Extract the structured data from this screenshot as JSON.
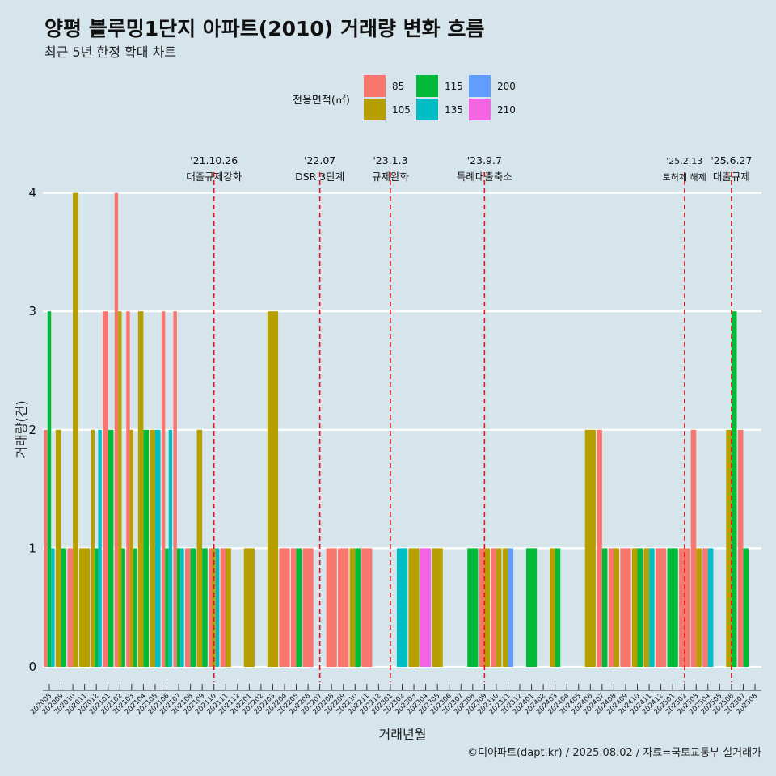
{
  "chart_data": {
    "type": "bar",
    "title": "양평 블루밍1단지 아파트(2010) 거래량 변화 흐름",
    "subtitle": "최근 5년 한정 확대 차트",
    "xlabel": "거래년월",
    "ylabel": "거래량(건)",
    "ylim": [
      0,
      4
    ],
    "yticks": [
      0,
      1,
      2,
      3,
      4
    ],
    "grid": true,
    "legend": {
      "title": "전용면적(㎡)",
      "placement": "top",
      "entries": [
        {
          "name": "85",
          "color": "#f8766d"
        },
        {
          "name": "105",
          "color": "#b79f00"
        },
        {
          "name": "115",
          "color": "#00ba38"
        },
        {
          "name": "135",
          "color": "#00bfc4"
        },
        {
          "name": "200",
          "color": "#619cff"
        },
        {
          "name": "210",
          "color": "#f564e3"
        }
      ]
    },
    "categories": [
      "202008",
      "202009",
      "202010",
      "202011",
      "202012",
      "202101",
      "202102",
      "202103",
      "202104",
      "202105",
      "202106",
      "202107",
      "202108",
      "202109",
      "202110",
      "202111",
      "202112",
      "202201",
      "202202",
      "202203",
      "202204",
      "202205",
      "202206",
      "202207",
      "202208",
      "202209",
      "202210",
      "202211",
      "202212",
      "202301",
      "202302",
      "202303",
      "202304",
      "202305",
      "202306",
      "202307",
      "202308",
      "202309",
      "202310",
      "202311",
      "202312",
      "202401",
      "202402",
      "202403",
      "202404",
      "202405",
      "202406",
      "202407",
      "202408",
      "202409",
      "202410",
      "202411",
      "202412",
      "202501",
      "202502",
      "202503",
      "202504",
      "202505",
      "202506",
      "202507",
      "202508"
    ],
    "bars": [
      {
        "month": "202008",
        "groups": [
          {
            "area": "85",
            "count": 2
          },
          {
            "area": "115",
            "count": 3
          },
          {
            "area": "135",
            "count": 1
          }
        ]
      },
      {
        "month": "202009",
        "groups": [
          {
            "area": "105",
            "count": 2
          },
          {
            "area": "115",
            "count": 1
          }
        ]
      },
      {
        "month": "202010",
        "groups": [
          {
            "area": "85",
            "count": 1
          },
          {
            "area": "105",
            "count": 4
          }
        ]
      },
      {
        "month": "202011",
        "groups": [
          {
            "area": "105",
            "count": 1
          }
        ]
      },
      {
        "month": "202012",
        "groups": [
          {
            "area": "105",
            "count": 2
          },
          {
            "area": "115",
            "count": 1
          },
          {
            "area": "135",
            "count": 2
          }
        ]
      },
      {
        "month": "202101",
        "groups": [
          {
            "area": "85",
            "count": 3
          },
          {
            "area": "115",
            "count": 2
          }
        ]
      },
      {
        "month": "202102",
        "groups": [
          {
            "area": "85",
            "count": 4
          },
          {
            "area": "105",
            "count": 3
          },
          {
            "area": "115",
            "count": 1
          }
        ]
      },
      {
        "month": "202103",
        "groups": [
          {
            "area": "85",
            "count": 3
          },
          {
            "area": "105",
            "count": 2
          },
          {
            "area": "115",
            "count": 1
          }
        ]
      },
      {
        "month": "202104",
        "groups": [
          {
            "area": "105",
            "count": 3
          },
          {
            "area": "115",
            "count": 2
          }
        ]
      },
      {
        "month": "202105",
        "groups": [
          {
            "area": "105",
            "count": 2
          },
          {
            "area": "135",
            "count": 2
          }
        ]
      },
      {
        "month": "202106",
        "groups": [
          {
            "area": "85",
            "count": 3
          },
          {
            "area": "115",
            "count": 1
          },
          {
            "area": "135",
            "count": 2
          }
        ]
      },
      {
        "month": "202107",
        "groups": [
          {
            "area": "85",
            "count": 3
          },
          {
            "area": "115",
            "count": 1
          },
          {
            "area": "135",
            "count": 1
          }
        ]
      },
      {
        "month": "202108",
        "groups": [
          {
            "area": "85",
            "count": 1
          },
          {
            "area": "115",
            "count": 1
          }
        ]
      },
      {
        "month": "202109",
        "groups": [
          {
            "area": "105",
            "count": 2
          },
          {
            "area": "115",
            "count": 1
          }
        ]
      },
      {
        "month": "202110",
        "groups": [
          {
            "area": "85",
            "count": 1
          },
          {
            "area": "105",
            "count": 1
          },
          {
            "area": "135",
            "count": 1
          }
        ]
      },
      {
        "month": "202111",
        "groups": [
          {
            "area": "85",
            "count": 1
          },
          {
            "area": "105",
            "count": 1
          }
        ]
      },
      {
        "month": "202112",
        "groups": []
      },
      {
        "month": "202201",
        "groups": [
          {
            "area": "105",
            "count": 1
          }
        ]
      },
      {
        "month": "202202",
        "groups": []
      },
      {
        "month": "202203",
        "groups": [
          {
            "area": "105",
            "count": 3
          }
        ]
      },
      {
        "month": "202204",
        "groups": [
          {
            "area": "85",
            "count": 1
          }
        ]
      },
      {
        "month": "202205",
        "groups": [
          {
            "area": "85",
            "count": 1
          },
          {
            "area": "115",
            "count": 1
          }
        ]
      },
      {
        "month": "202206",
        "groups": [
          {
            "area": "85",
            "count": 1
          }
        ]
      },
      {
        "month": "202207",
        "groups": []
      },
      {
        "month": "202208",
        "groups": [
          {
            "area": "85",
            "count": 1
          }
        ]
      },
      {
        "month": "202209",
        "groups": [
          {
            "area": "85",
            "count": 1
          }
        ]
      },
      {
        "month": "202210",
        "groups": [
          {
            "area": "105",
            "count": 1
          },
          {
            "area": "115",
            "count": 1
          }
        ]
      },
      {
        "month": "202211",
        "groups": [
          {
            "area": "85",
            "count": 1
          }
        ]
      },
      {
        "month": "202212",
        "groups": []
      },
      {
        "month": "202301",
        "groups": []
      },
      {
        "month": "202302",
        "groups": [
          {
            "area": "135",
            "count": 1
          }
        ]
      },
      {
        "month": "202303",
        "groups": [
          {
            "area": "105",
            "count": 1
          }
        ]
      },
      {
        "month": "202304",
        "groups": [
          {
            "area": "210",
            "count": 1
          }
        ]
      },
      {
        "month": "202305",
        "groups": [
          {
            "area": "105",
            "count": 1
          }
        ]
      },
      {
        "month": "202306",
        "groups": []
      },
      {
        "month": "202307",
        "groups": []
      },
      {
        "month": "202308",
        "groups": [
          {
            "area": "115",
            "count": 1
          }
        ]
      },
      {
        "month": "202309",
        "groups": [
          {
            "area": "85",
            "count": 1
          },
          {
            "area": "105",
            "count": 1
          }
        ]
      },
      {
        "month": "202310",
        "groups": [
          {
            "area": "85",
            "count": 1
          },
          {
            "area": "105",
            "count": 1
          }
        ]
      },
      {
        "month": "202311",
        "groups": [
          {
            "area": "105",
            "count": 1
          },
          {
            "area": "200",
            "count": 1
          }
        ]
      },
      {
        "month": "202312",
        "groups": []
      },
      {
        "month": "202401",
        "groups": [
          {
            "area": "115",
            "count": 1
          }
        ]
      },
      {
        "month": "202402",
        "groups": []
      },
      {
        "month": "202403",
        "groups": [
          {
            "area": "105",
            "count": 1
          },
          {
            "area": "115",
            "count": 1
          }
        ]
      },
      {
        "month": "202404",
        "groups": []
      },
      {
        "month": "202405",
        "groups": []
      },
      {
        "month": "202406",
        "groups": [
          {
            "area": "105",
            "count": 2
          }
        ]
      },
      {
        "month": "202407",
        "groups": [
          {
            "area": "85",
            "count": 2
          },
          {
            "area": "115",
            "count": 1
          }
        ]
      },
      {
        "month": "202408",
        "groups": [
          {
            "area": "85",
            "count": 1
          },
          {
            "area": "105",
            "count": 1
          }
        ]
      },
      {
        "month": "202409",
        "groups": [
          {
            "area": "85",
            "count": 1
          }
        ]
      },
      {
        "month": "202410",
        "groups": [
          {
            "area": "105",
            "count": 1
          },
          {
            "area": "115",
            "count": 1
          }
        ]
      },
      {
        "month": "202411",
        "groups": [
          {
            "area": "105",
            "count": 1
          },
          {
            "area": "135",
            "count": 1
          }
        ]
      },
      {
        "month": "202412",
        "groups": [
          {
            "area": "85",
            "count": 1
          }
        ]
      },
      {
        "month": "202501",
        "groups": [
          {
            "area": "115",
            "count": 1
          }
        ]
      },
      {
        "month": "202502",
        "groups": [
          {
            "area": "85",
            "count": 1
          }
        ]
      },
      {
        "month": "202503",
        "groups": [
          {
            "area": "85",
            "count": 2
          },
          {
            "area": "105",
            "count": 1
          }
        ]
      },
      {
        "month": "202504",
        "groups": [
          {
            "area": "85",
            "count": 1
          },
          {
            "area": "135",
            "count": 1
          }
        ]
      },
      {
        "month": "202505",
        "groups": []
      },
      {
        "month": "202506",
        "groups": [
          {
            "area": "105",
            "count": 2
          },
          {
            "area": "115",
            "count": 3
          }
        ]
      },
      {
        "month": "202507",
        "groups": [
          {
            "area": "85",
            "count": 2
          },
          {
            "area": "115",
            "count": 1
          }
        ]
      },
      {
        "month": "202508",
        "groups": []
      }
    ],
    "annotations": [
      {
        "month_position": 14.0,
        "date": "'21.10.26",
        "text": "대출규제강화",
        "style": "normal"
      },
      {
        "month_position": 23.0,
        "date": "'22.07",
        "text": "DSR 3단계",
        "style": "normal"
      },
      {
        "month_position": 29.0,
        "date": "'23.1.3",
        "text": "규제완화",
        "style": "normal"
      },
      {
        "month_position": 37.0,
        "date": "'23.9.7",
        "text": "특례대출축소",
        "style": "normal"
      },
      {
        "month_position": 54.0,
        "date": "'25.2.13",
        "text": "토허제 해제",
        "style": "small"
      },
      {
        "month_position": 58.0,
        "date": "'25.6.27",
        "text": "대출규제",
        "style": "normal"
      }
    ],
    "caption": "©디아파트(dapt.kr) / 2025.08.02 / 자료=국토교통부 실거래가"
  }
}
